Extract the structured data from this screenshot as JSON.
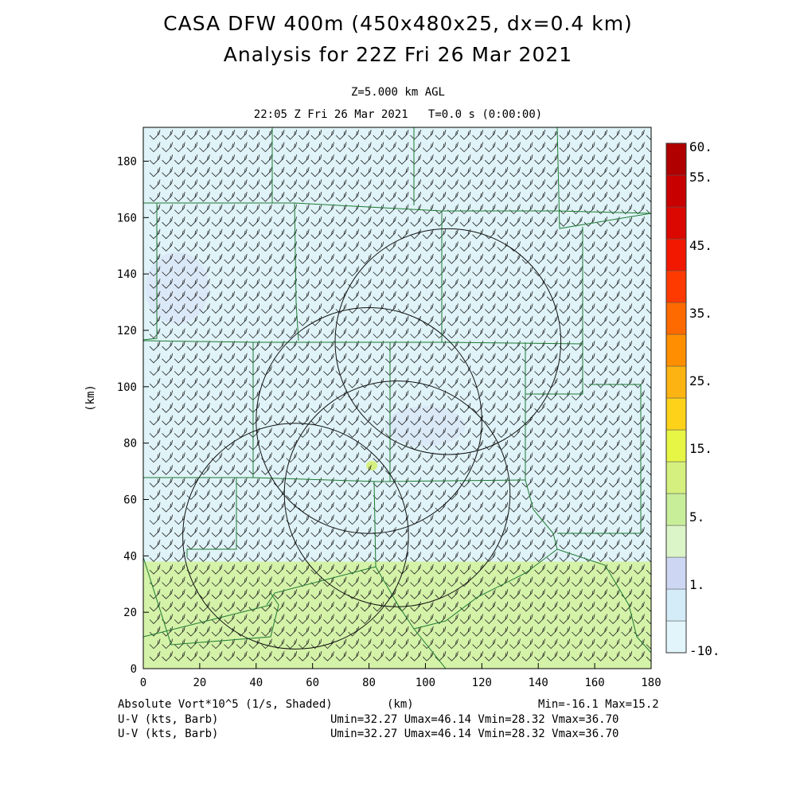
{
  "header": {
    "title_line1": "CASA DFW 400m (450x480x25, dx=0.4 km)",
    "title_line2": "Analysis for 22Z Fri 26 Mar 2021",
    "level": "Z=5.000 km AGL",
    "time": "22:05 Z Fri 26 Mar 2021   T=0.0 s (0:00:00)"
  },
  "footer": {
    "left_line1": "Absolute Vort*10^5 (1/s, Shaded)",
    "left_line2": "U-V (kts, Barb)",
    "left_line3": "U-V (kts, Barb)",
    "xunit": "(km)",
    "minmax": "Min=-16.1 Max=15.2",
    "uv_line2": "Umin=32.27 Umax=46.14 Vmin=28.32 Vmax=36.70",
    "uv_line3": "Umin=32.27 Umax=46.14 Vmin=28.32 Vmax=36.70"
  },
  "chart_data": {
    "type": "heatmap",
    "xlabel": "(km)",
    "ylabel": "(km)",
    "xlim": [
      0,
      180
    ],
    "ylim": [
      0,
      192
    ],
    "xticks": [
      "0",
      "20",
      "40",
      "60",
      "80",
      "100",
      "120",
      "140",
      "160",
      "180"
    ],
    "yticks": [
      "0",
      "20",
      "40",
      "60",
      "80",
      "100",
      "120",
      "140",
      "160",
      "180"
    ],
    "field": "Absolute Vort*10^5 (1/s, Shaded)",
    "field_min": -16.1,
    "field_max": 15.2,
    "shaded_regions": [
      {
        "label": "1.",
        "ymin": 38,
        "ymax": 192,
        "color": "#dff3f8"
      },
      {
        "label": "5.",
        "ymin": 0,
        "ymax": 38,
        "color": "#d4f2a8"
      }
    ],
    "colorbar": {
      "levels": [
        "-10.",
        "1.",
        "5.",
        "15.",
        "25.",
        "35.",
        "45.",
        "55.",
        "60."
      ],
      "colors": [
        "#e2f5fb",
        "#d4ebf8",
        "#cdd7f3",
        "#dcf5c8",
        "#c8ee9a",
        "#d5f07e",
        "#e7f545",
        "#ffd21a",
        "#fdb412",
        "#ff8f00",
        "#ff6a00",
        "#ff3a00",
        "#f21800",
        "#da0800",
        "#c80000",
        "#b00000"
      ]
    },
    "radar_rings": [
      {
        "cx": 108,
        "cy": 116,
        "r": 40
      },
      {
        "cx": 80,
        "cy": 88,
        "r": 40
      },
      {
        "cx": 90,
        "cy": 62,
        "r": 40
      },
      {
        "cx": 54,
        "cy": 47,
        "r": 40
      }
    ],
    "wind": {
      "units": "kts",
      "umin": 32.27,
      "umax": 46.14,
      "vmin": 28.32,
      "vmax": 36.7
    }
  }
}
